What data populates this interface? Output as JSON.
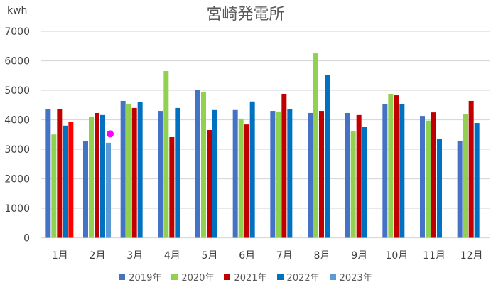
{
  "chart_data": {
    "type": "bar",
    "title": "宮崎発電所",
    "ylabel": "kwh",
    "xlabel": "",
    "ylim": [
      0,
      7000
    ],
    "yticks": [
      "0",
      "1000",
      "2000",
      "3000",
      "4000",
      "5000",
      "6000",
      "7000"
    ],
    "grid": true,
    "legend_position": "bottom",
    "categories": [
      "1月",
      "2月",
      "3月",
      "4月",
      "5月",
      "6月",
      "7月",
      "8月",
      "9月",
      "10月",
      "11月",
      "12月"
    ],
    "series": [
      {
        "name": "2019年",
        "color": "#4472C4",
        "values": [
          4370,
          3270,
          4640,
          4300,
          5000,
          4330,
          4300,
          4230,
          4230,
          4520,
          4130,
          3290
        ]
      },
      {
        "name": "2020年",
        "color": "#92D050",
        "values": [
          3500,
          4110,
          4520,
          5650,
          4950,
          4040,
          4280,
          6250,
          3600,
          4880,
          3970,
          4180
        ]
      },
      {
        "name": "2021年",
        "color": "#C00000",
        "values": [
          4370,
          4230,
          4400,
          3410,
          3650,
          3840,
          4880,
          4300,
          4160,
          4830,
          4250,
          4640
        ]
      },
      {
        "name": "2022年",
        "color": "#0070C0",
        "values": [
          3800,
          4160,
          4590,
          4400,
          4330,
          4620,
          4350,
          5530,
          3770,
          4540,
          3360,
          3890
        ]
      },
      {
        "name": "2023年",
        "color": "#5B9BD5",
        "values": [
          3920,
          3220,
          null,
          null,
          null,
          null,
          null,
          null,
          null,
          null,
          null,
          null
        ],
        "point_colors": [
          "#FF0000",
          null
        ]
      }
    ],
    "markers": [
      {
        "category": "2月",
        "value": 3520,
        "color": "#FF00FF"
      }
    ]
  }
}
